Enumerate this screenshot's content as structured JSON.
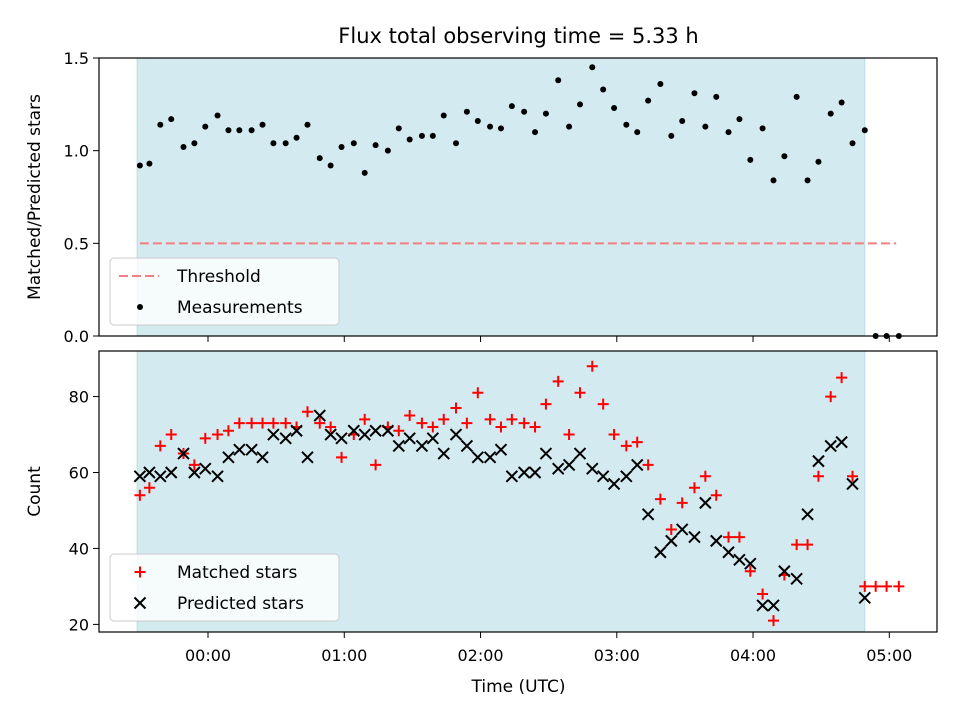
{
  "chart_data": [
    {
      "type": "scatter",
      "title": "Flux total observing time = 5.33 h",
      "ylabel": "Matched/Predicted stars",
      "ylim": [
        0.0,
        1.5
      ],
      "yticks": [
        "0.0",
        "0.5",
        "1.0",
        "1.5"
      ],
      "legend_position": "lower-left",
      "legend": [
        "Threshold",
        "Measurements"
      ],
      "threshold": {
        "name": "Threshold",
        "value": 0.5,
        "x_start": -0.5,
        "x_end": 5.05,
        "color": "#f08080"
      },
      "shaded_span": {
        "x_start": -0.52,
        "x_end": 4.82,
        "color": "#d3eaf0"
      },
      "series": [
        {
          "name": "Measurements",
          "color": "#000000",
          "x": [
            -0.5,
            -0.43,
            -0.35,
            -0.27,
            -0.18,
            -0.1,
            -0.02,
            0.07,
            0.15,
            0.23,
            0.32,
            0.4,
            0.48,
            0.57,
            0.65,
            0.73,
            0.82,
            0.9,
            0.98,
            1.07,
            1.15,
            1.23,
            1.32,
            1.4,
            1.48,
            1.57,
            1.65,
            1.73,
            1.82,
            1.9,
            1.98,
            2.07,
            2.15,
            2.23,
            2.32,
            2.4,
            2.48,
            2.57,
            2.65,
            2.73,
            2.82,
            2.9,
            2.98,
            3.07,
            3.15,
            3.23,
            3.32,
            3.4,
            3.48,
            3.57,
            3.65,
            3.73,
            3.82,
            3.9,
            3.98,
            4.07,
            4.15,
            4.23,
            4.32,
            4.4,
            4.48,
            4.57,
            4.65,
            4.73,
            4.82,
            4.9,
            4.98,
            5.07
          ],
          "y": [
            0.92,
            0.93,
            1.14,
            1.17,
            1.02,
            1.04,
            1.13,
            1.19,
            1.11,
            1.11,
            1.11,
            1.14,
            1.04,
            1.04,
            1.07,
            1.14,
            0.96,
            0.92,
            1.02,
            1.04,
            0.88,
            1.03,
            1.0,
            1.12,
            1.06,
            1.08,
            1.08,
            1.19,
            1.04,
            1.21,
            1.16,
            1.13,
            1.12,
            1.24,
            1.21,
            1.1,
            1.2,
            1.38,
            1.13,
            1.25,
            1.45,
            1.33,
            1.23,
            1.14,
            1.1,
            1.27,
            1.36,
            1.08,
            1.16,
            1.31,
            1.13,
            1.29,
            1.1,
            1.17,
            0.95,
            1.12,
            0.84,
            0.97,
            1.29,
            0.84,
            0.94,
            1.2,
            1.26,
            1.04,
            1.11,
            0.0,
            0.0,
            0.0
          ]
        }
      ]
    },
    {
      "type": "scatter",
      "xlabel": "Time (UTC)",
      "ylabel": "Count",
      "ylim": [
        18,
        92
      ],
      "yticks": [
        "20",
        "40",
        "60",
        "80"
      ],
      "xlim": [
        -0.8,
        5.35
      ],
      "xticks": [
        {
          "value": 0,
          "label": "00:00"
        },
        {
          "value": 1,
          "label": "01:00"
        },
        {
          "value": 2,
          "label": "02:00"
        },
        {
          "value": 3,
          "label": "03:00"
        },
        {
          "value": 4,
          "label": "04:00"
        },
        {
          "value": 5,
          "label": "05:00"
        }
      ],
      "legend_position": "lower-left",
      "legend": [
        "Matched stars",
        "Predicted stars"
      ],
      "shaded_span": {
        "x_start": -0.52,
        "x_end": 4.82,
        "color": "#d3eaf0"
      },
      "series": [
        {
          "name": "Matched stars",
          "marker": "+",
          "color": "#ff0000",
          "x": [
            -0.5,
            -0.43,
            -0.35,
            -0.27,
            -0.18,
            -0.1,
            -0.02,
            0.07,
            0.15,
            0.23,
            0.32,
            0.4,
            0.48,
            0.57,
            0.65,
            0.73,
            0.82,
            0.9,
            0.98,
            1.07,
            1.15,
            1.23,
            1.32,
            1.4,
            1.48,
            1.57,
            1.65,
            1.73,
            1.82,
            1.9,
            1.98,
            2.07,
            2.15,
            2.23,
            2.32,
            2.4,
            2.48,
            2.57,
            2.65,
            2.73,
            2.82,
            2.9,
            2.98,
            3.07,
            3.15,
            3.23,
            3.32,
            3.4,
            3.48,
            3.57,
            3.65,
            3.73,
            3.82,
            3.9,
            3.98,
            4.07,
            4.15,
            4.23,
            4.32,
            4.4,
            4.48,
            4.57,
            4.65,
            4.73,
            4.82,
            4.9,
            4.98,
            5.07
          ],
          "y": [
            54,
            56,
            67,
            70,
            65,
            62,
            69,
            70,
            71,
            73,
            73,
            73,
            73,
            73,
            72,
            76,
            73,
            72,
            64,
            70,
            74,
            62,
            72,
            71,
            75,
            73,
            72,
            74,
            77,
            73,
            81,
            74,
            72,
            74,
            73,
            72,
            78,
            84,
            70,
            81,
            88,
            78,
            70,
            67,
            68,
            62,
            53,
            45,
            52,
            56,
            59,
            54,
            43,
            43,
            34,
            28,
            21,
            33,
            41,
            41,
            59,
            80,
            85,
            59,
            30,
            30,
            30,
            30
          ]
        },
        {
          "name": "Predicted stars",
          "marker": "x",
          "color": "#000000",
          "x": [
            -0.5,
            -0.43,
            -0.35,
            -0.27,
            -0.18,
            -0.1,
            -0.02,
            0.07,
            0.15,
            0.23,
            0.32,
            0.4,
            0.48,
            0.57,
            0.65,
            0.73,
            0.82,
            0.9,
            0.98,
            1.07,
            1.15,
            1.23,
            1.32,
            1.4,
            1.48,
            1.57,
            1.65,
            1.73,
            1.82,
            1.9,
            1.98,
            2.07,
            2.15,
            2.23,
            2.32,
            2.4,
            2.48,
            2.57,
            2.65,
            2.73,
            2.82,
            2.9,
            2.98,
            3.07,
            3.15,
            3.23,
            3.32,
            3.4,
            3.48,
            3.57,
            3.65,
            3.73,
            3.82,
            3.9,
            3.98,
            4.07,
            4.15,
            4.23,
            4.32,
            4.4,
            4.48,
            4.57,
            4.65,
            4.73,
            4.82
          ],
          "y": [
            59,
            60,
            59,
            60,
            65,
            60,
            61,
            59,
            64,
            66,
            66,
            64,
            70,
            69,
            71,
            64,
            75,
            70,
            69,
            71,
            70,
            71,
            71,
            67,
            69,
            67,
            69,
            65,
            70,
            67,
            64,
            64,
            66,
            59,
            60,
            60,
            65,
            61,
            62,
            65,
            61,
            59,
            57,
            59,
            62,
            49,
            39,
            42,
            45,
            43,
            52,
            42,
            39,
            37,
            36,
            25,
            25,
            34,
            32,
            49,
            63,
            67,
            68,
            57,
            27
          ]
        }
      ]
    }
  ]
}
